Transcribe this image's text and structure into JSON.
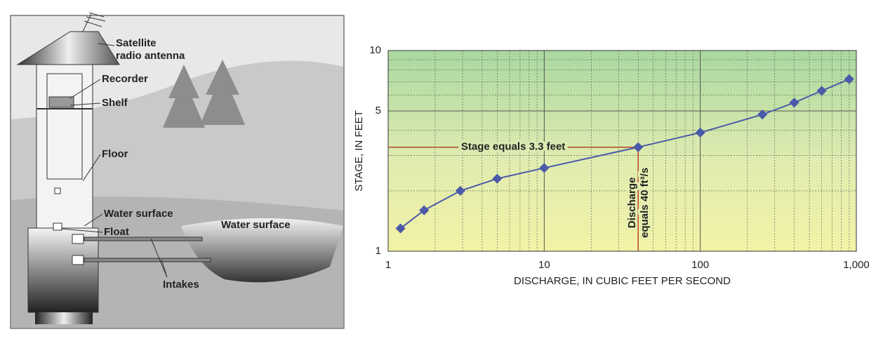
{
  "diagram": {
    "antenna": [
      "Satellite",
      "radio antenna"
    ],
    "recorder": "Recorder",
    "shelf": "Shelf",
    "floor": "Floor",
    "well_water_surface": "Water surface",
    "float": "Float",
    "lake_water_surface": "Water surface",
    "intakes": "Intakes"
  },
  "chart_data": {
    "type": "line",
    "x_label": "DISCHARGE, IN CUBIC FEET PER SECOND",
    "y_label": "STAGE, IN FEET",
    "x": [
      1.2,
      1.7,
      2.9,
      5,
      10,
      40,
      100,
      250,
      400,
      600,
      900
    ],
    "series": [
      {
        "color": "#4a5aa8",
        "values": [
          1.3,
          1.6,
          2.0,
          2.3,
          2.6,
          3.3,
          3.9,
          4.8,
          5.5,
          6.3,
          7.2
        ]
      }
    ],
    "xlim": [
      1,
      1000
    ],
    "ylim": [
      1,
      10
    ],
    "log_x": true,
    "log_y": true,
    "xticks": [
      1,
      10,
      100,
      {
        "value": 1000,
        "label": "1,000"
      }
    ],
    "yticks": [
      1,
      5,
      10
    ],
    "xminorticks": [
      2,
      3,
      4,
      5,
      6,
      7,
      8,
      9,
      20,
      30,
      40,
      50,
      60,
      70,
      80,
      90,
      200,
      300,
      400,
      500,
      600,
      700,
      800,
      900
    ],
    "yminorticks": [
      2,
      3,
      4,
      6,
      7,
      8,
      9
    ],
    "grid": true,
    "reference": {
      "x": 40,
      "y": 3.3,
      "color": "#b5432a",
      "y_text": "Stage equals 3.3 feet",
      "x_text": [
        "Discharge",
        "equals 40 ft³/s"
      ]
    }
  }
}
